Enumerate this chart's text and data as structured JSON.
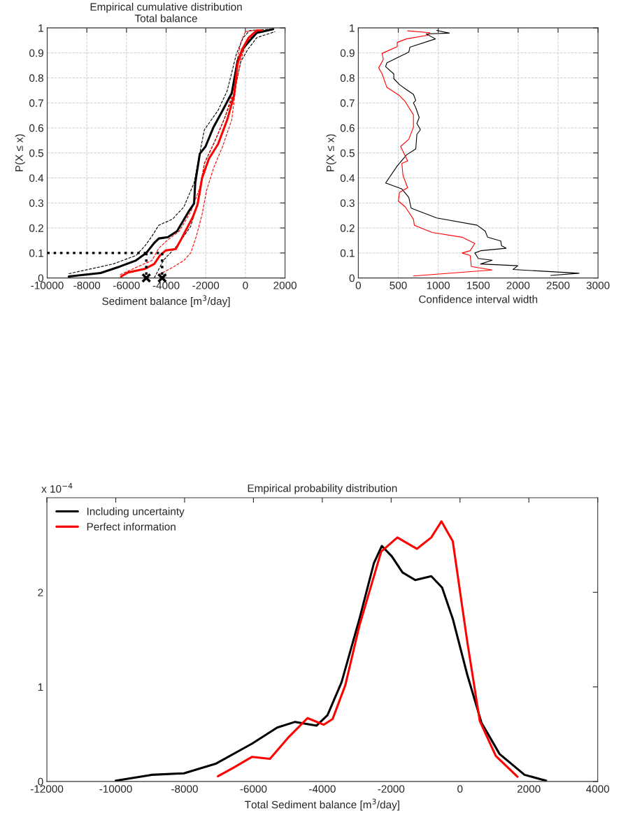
{
  "chart_data": [
    {
      "type": "line",
      "title": "Empirical cumulative distribution\nTotal balance",
      "xlabel": "Sediment balance [m$^{3}$/day]",
      "ylabel": "P(X ≤ x)",
      "xlim": [
        -10000,
        2000
      ],
      "xticks": [
        -10000,
        -8000,
        -6000,
        -4000,
        -2000,
        0,
        2000
      ],
      "ylim": [
        0,
        1
      ],
      "yticks": [
        0,
        0.1,
        0.2,
        0.3,
        0.4,
        0.5,
        0.6,
        0.7,
        0.8,
        0.9,
        1
      ],
      "grid": true,
      "series": [
        {
          "color": "#000000",
          "line_style": "dashed",
          "x": [
            -8913,
            -6670,
            -5520,
            -5060,
            -4715,
            -4370,
            -3680,
            -3105,
            -2590,
            -2070,
            -1380,
            -920,
            -460,
            -115,
            230,
            1400
          ],
          "values": [
            0.017,
            0.056,
            0.09,
            0.129,
            0.167,
            0.211,
            0.235,
            0.284,
            0.38,
            0.593,
            0.67,
            0.748,
            0.894,
            0.961,
            0.99,
            0.995
          ]
        },
        {
          "color": "#000000",
          "line_style": "dashed",
          "x": [
            -4600,
            -4140,
            -3450,
            -2760,
            -2300,
            -2070,
            -1495,
            -1035,
            -575,
            -230,
            115,
            575,
            1500
          ],
          "values": [
            0,
            0.07,
            0.129,
            0.206,
            0.332,
            0.458,
            0.555,
            0.642,
            0.739,
            0.865,
            0.913,
            0.961,
            0.985
          ]
        },
        {
          "color": "#ff0000",
          "line_style": "dashed",
          "x": [
            -6325,
            -5520,
            -4715,
            -4370,
            -3910,
            -3335,
            -2760,
            -2300,
            -2070,
            -1610,
            -1035,
            -690,
            -460,
            -230,
            0,
            460
          ],
          "values": [
            0.013,
            0.042,
            0.07,
            0.119,
            0.153,
            0.187,
            0.264,
            0.361,
            0.458,
            0.535,
            0.642,
            0.729,
            0.855,
            0.942,
            0.985,
            0.99
          ]
        },
        {
          "color": "#ff0000",
          "line_style": "dashed",
          "x": [
            -4370,
            -3680,
            -3105,
            -2760,
            -2475,
            -2185,
            -1955,
            -1610,
            -1150,
            -690,
            -460,
            -230,
            0,
            345,
            800
          ],
          "values": [
            0.013,
            0.042,
            0.07,
            0.1,
            0.167,
            0.255,
            0.351,
            0.439,
            0.526,
            0.632,
            0.777,
            0.874,
            0.928,
            0.971,
            0.99
          ]
        },
        {
          "color": "#000000",
          "line_style": "solid",
          "x": [
            -8913,
            -7300,
            -6325,
            -5520,
            -5000,
            -4600,
            -4370,
            -3910,
            -3450,
            -2875,
            -2590,
            -2530,
            -2300,
            -2010,
            -1610,
            -1150,
            -690,
            -400,
            -115,
            230,
            575,
            1400
          ],
          "values": [
            0.006,
            0.02,
            0.046,
            0.07,
            0.1,
            0.14,
            0.158,
            0.163,
            0.187,
            0.264,
            0.298,
            0.38,
            0.497,
            0.526,
            0.603,
            0.67,
            0.739,
            0.865,
            0.918,
            0.95,
            0.98,
            0.995
          ]
        },
        {
          "color": "#ff0000",
          "line_style": "solid",
          "x": [
            -6270,
            -5920,
            -5060,
            -4600,
            -4310,
            -4025,
            -3510,
            -3220,
            -2645,
            -2415,
            -2185,
            -1840,
            -1380,
            -920,
            -575,
            -400,
            -170,
            170,
            575,
            800
          ],
          "values": [
            0.006,
            0.022,
            0.037,
            0.056,
            0.09,
            0.11,
            0.116,
            0.158,
            0.245,
            0.293,
            0.4,
            0.477,
            0.535,
            0.632,
            0.729,
            0.855,
            0.913,
            0.961,
            0.99,
            0.99
          ]
        },
        {
          "color": "#000000",
          "line_style": "dotted",
          "x": [
            -10000,
            -4200
          ],
          "values": [
            0.1,
            0.1
          ]
        },
        {
          "color": "#000000",
          "line_style": "dotted",
          "x": [
            -5000,
            -5000
          ],
          "values": [
            0.1,
            0
          ]
        },
        {
          "color": "#000000",
          "line_style": "dotted",
          "x": [
            -4200,
            -4200
          ],
          "values": [
            0.1,
            0
          ]
        },
        {
          "type": "scatter",
          "marker": "cross",
          "color": "#000000",
          "x": [
            -5000,
            -4200
          ],
          "values": [
            0,
            0
          ]
        }
      ]
    },
    {
      "type": "line",
      "xlabel": "Confidence interval width",
      "ylabel": "P(X ≤ x)",
      "xlim": [
        0,
        3000
      ],
      "xticks": [
        0,
        500,
        1000,
        1500,
        2000,
        2500,
        3000
      ],
      "ylim": [
        0,
        1
      ],
      "yticks": [
        0,
        0.1,
        0.2,
        0.3,
        0.4,
        0.5,
        0.6,
        0.7,
        0.8,
        0.9,
        1
      ],
      "grid": true,
      "series": [
        {
          "color": "#000000",
          "line_style": "solid",
          "x": [
            2409,
            2763,
            1937,
            1995,
            1531,
            1676,
            1502,
            1458,
            1531,
            1850,
            1792,
            1783,
            1618,
            1589,
            1487,
            980,
            661,
            632,
            545,
            342,
            487,
            603,
            719,
            733,
            777,
            733,
            762,
            719,
            690,
            719,
            690,
            603,
            516,
            444,
            444,
            342,
            356,
            632,
            646,
            965,
            849,
            1139,
            980
          ],
          "values": [
            0.01,
            0.019,
            0.034,
            0.049,
            0.056,
            0.071,
            0.078,
            0.1,
            0.109,
            0.119,
            0.129,
            0.148,
            0.163,
            0.187,
            0.211,
            0.24,
            0.279,
            0.322,
            0.356,
            0.38,
            0.448,
            0.492,
            0.516,
            0.574,
            0.593,
            0.618,
            0.642,
            0.681,
            0.7,
            0.71,
            0.734,
            0.753,
            0.773,
            0.797,
            0.816,
            0.845,
            0.86,
            0.903,
            0.923,
            0.956,
            0.976,
            0.979,
            0.99
          ]
        },
        {
          "color": "#ff0000",
          "line_style": "solid",
          "x": [
            690,
            1676,
            1415,
            1400,
            1299,
            1400,
            1458,
            1299,
            922,
            701,
            690,
            588,
            501,
            516,
            617,
            559,
            545,
            617,
            530,
            632,
            690,
            690,
            588,
            516,
            356,
            298,
            255,
            313,
            298,
            487,
            487,
            603,
            878,
            893,
            617
          ],
          "values": [
            0.008,
            0.032,
            0.046,
            0.09,
            0.1,
            0.109,
            0.138,
            0.163,
            0.182,
            0.211,
            0.235,
            0.284,
            0.308,
            0.342,
            0.361,
            0.41,
            0.458,
            0.468,
            0.526,
            0.555,
            0.603,
            0.652,
            0.705,
            0.729,
            0.763,
            0.816,
            0.84,
            0.874,
            0.898,
            0.925,
            0.942,
            0.956,
            0.971,
            0.981,
            0.988
          ]
        }
      ]
    },
    {
      "type": "line",
      "title": "Empirical probability distribution",
      "xlabel": "Total Sediment balance [m$^{3}$/day]",
      "annotations": [
        "x 10$^{−4}$"
      ],
      "xlim": [
        -12000,
        4000
      ],
      "xticks": [
        -12000,
        -10000,
        -8000,
        -6000,
        -4000,
        -2000,
        0,
        2000,
        4000
      ],
      "ylim": [
        0,
        3
      ],
      "yticks": [
        0,
        1,
        2
      ],
      "legend": "top left",
      "series": [
        {
          "name": "Including uncertainty",
          "color": "#000000",
          "line_style": "solid",
          "x": [
            -10000,
            -8960,
            -8020,
            -7080,
            -6040,
            -5310,
            -4790,
            -4170,
            -3850,
            -3440,
            -2920,
            -2500,
            -2270,
            -1980,
            -1670,
            -1300,
            -835,
            -520,
            -210,
            210,
            625,
            1150,
            1875,
            2500
          ],
          "values": [
            0.008,
            0.07,
            0.086,
            0.19,
            0.4,
            0.57,
            0.63,
            0.59,
            0.7,
            1.05,
            1.72,
            2.31,
            2.49,
            2.38,
            2.21,
            2.13,
            2.17,
            2.05,
            1.72,
            1.13,
            0.62,
            0.29,
            0.07,
            0.008
          ]
        },
        {
          "name": "Perfect information",
          "color": "#ff0000",
          "line_style": "solid",
          "x": [
            -7030,
            -6560,
            -6040,
            -5520,
            -5000,
            -4430,
            -3960,
            -3700,
            -3330,
            -2920,
            -2290,
            -1820,
            -1250,
            -835,
            -540,
            -210,
            210,
            575,
            1040,
            1670
          ],
          "values": [
            0.055,
            0.15,
            0.26,
            0.24,
            0.46,
            0.67,
            0.6,
            0.66,
            1.02,
            1.65,
            2.43,
            2.58,
            2.46,
            2.58,
            2.75,
            2.54,
            1.48,
            0.64,
            0.27,
            0.05
          ]
        }
      ]
    }
  ]
}
